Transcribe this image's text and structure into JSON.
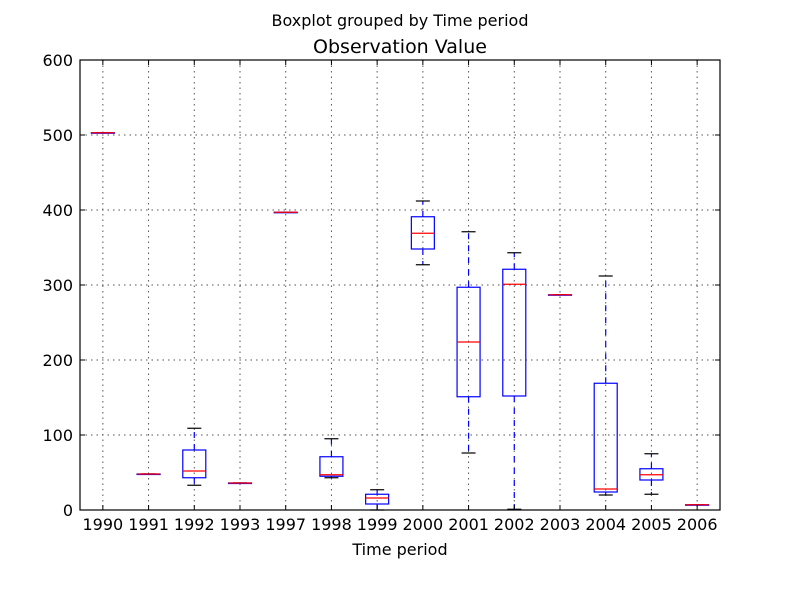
{
  "chart_data": {
    "type": "boxplot",
    "suptitle": "Boxplot grouped by Time period",
    "title": "Observation Value",
    "xlabel": "Time period",
    "ylabel": "",
    "ylim": [
      0,
      600
    ],
    "yticks": [
      0,
      100,
      200,
      300,
      400,
      500,
      600
    ],
    "grid": true,
    "categories": [
      "1990",
      "1991",
      "1992",
      "1993",
      "1997",
      "1998",
      "1999",
      "2000",
      "2001",
      "2002",
      "2003",
      "2004",
      "2005",
      "2006"
    ],
    "boxes": [
      {
        "category": "1990",
        "whisker_low": 503,
        "q1": 503,
        "median": 503,
        "q3": 503,
        "whisker_high": 503
      },
      {
        "category": "1991",
        "whisker_low": 48,
        "q1": 48,
        "median": 48,
        "q3": 48,
        "whisker_high": 48
      },
      {
        "category": "1992",
        "whisker_low": 33,
        "q1": 43,
        "median": 52,
        "q3": 80,
        "whisker_high": 109
      },
      {
        "category": "1993",
        "whisker_low": 36,
        "q1": 36,
        "median": 36,
        "q3": 36,
        "whisker_high": 36
      },
      {
        "category": "1997",
        "whisker_low": 397,
        "q1": 397,
        "median": 397,
        "q3": 397,
        "whisker_high": 397
      },
      {
        "category": "1998",
        "whisker_low": 43,
        "q1": 45,
        "median": 47,
        "q3": 71,
        "whisker_high": 95
      },
      {
        "category": "1999",
        "whisker_low": 0,
        "q1": 8,
        "median": 16,
        "q3": 21,
        "whisker_high": 27
      },
      {
        "category": "2000",
        "whisker_low": 327,
        "q1": 348,
        "median": 369,
        "q3": 391,
        "whisker_high": 412
      },
      {
        "category": "2001",
        "whisker_low": 76,
        "q1": 151,
        "median": 224,
        "q3": 297,
        "whisker_high": 371
      },
      {
        "category": "2002",
        "whisker_low": 1,
        "q1": 152,
        "median": 301,
        "q3": 321,
        "whisker_high": 343
      },
      {
        "category": "2003",
        "whisker_low": 287,
        "q1": 287,
        "median": 287,
        "q3": 287,
        "whisker_high": 287
      },
      {
        "category": "2004",
        "whisker_low": 20,
        "q1": 24,
        "median": 28,
        "q3": 169,
        "whisker_high": 312
      },
      {
        "category": "2005",
        "whisker_low": 21,
        "q1": 40,
        "median": 47,
        "q3": 55,
        "whisker_high": 75
      },
      {
        "category": "2006",
        "whisker_low": 7,
        "q1": 7,
        "median": 7,
        "q3": 7,
        "whisker_high": 7
      }
    ],
    "colors": {
      "box": "#0000ff",
      "median": "#ff0000",
      "whisker": "#0000ff",
      "cap": "#000000",
      "grid": "#555555",
      "axes": "#000000"
    }
  }
}
